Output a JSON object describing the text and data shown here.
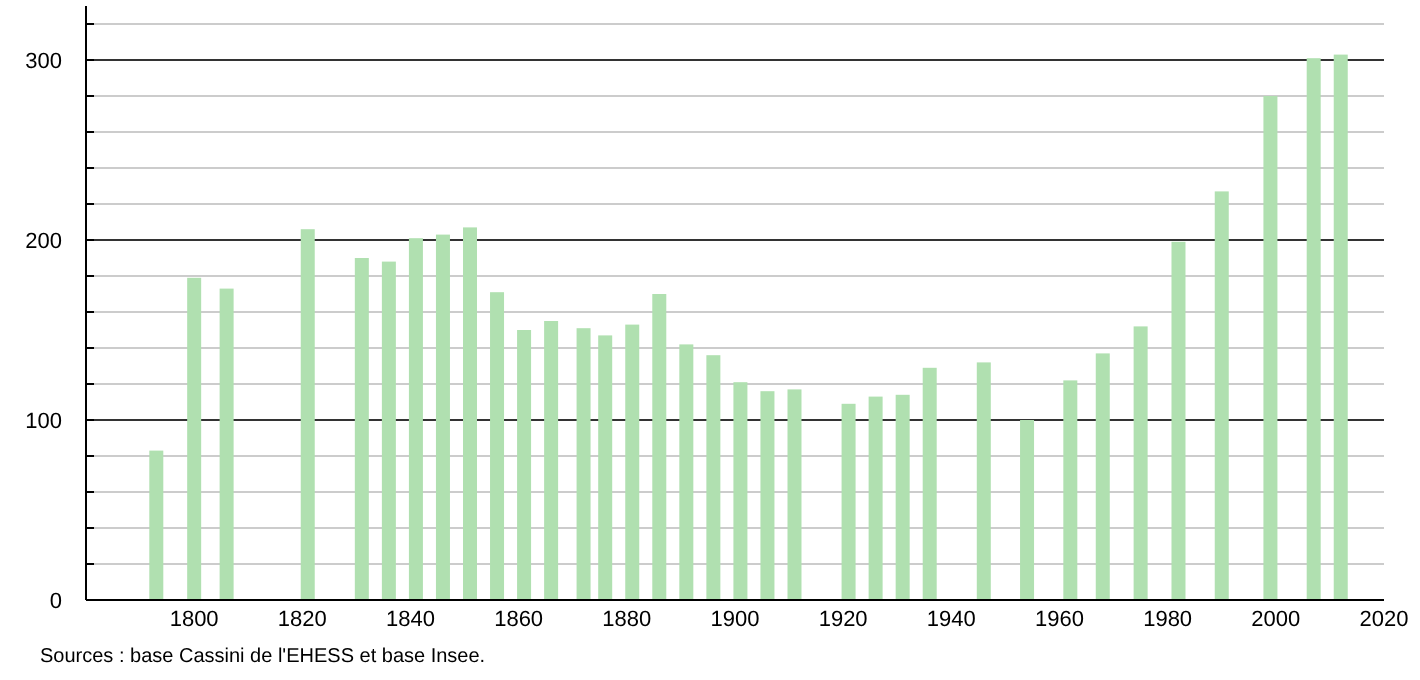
{
  "chart_data": {
    "type": "bar",
    "color": "#b0e0b0",
    "x": [
      1793,
      1800,
      1806,
      1821,
      1831,
      1836,
      1841,
      1846,
      1851,
      1856,
      1861,
      1866,
      1872,
      1876,
      1881,
      1886,
      1891,
      1896,
      1901,
      1906,
      1911,
      1921,
      1926,
      1931,
      1936,
      1946,
      1954,
      1962,
      1968,
      1975,
      1982,
      1990,
      1999,
      2007,
      2012
    ],
    "values": [
      83,
      179,
      173,
      206,
      190,
      188,
      201,
      203,
      207,
      171,
      150,
      155,
      151,
      147,
      153,
      170,
      142,
      136,
      121,
      116,
      117,
      109,
      113,
      114,
      129,
      132,
      100,
      122,
      137,
      152,
      199,
      227,
      280,
      301,
      303
    ],
    "xlim": [
      1780,
      2020
    ],
    "xticks": [
      1800,
      1820,
      1840,
      1860,
      1880,
      1900,
      1920,
      1940,
      1960,
      1980,
      2000,
      2020
    ],
    "ylim": [
      0,
      330
    ],
    "yticks": [
      0,
      {
        "value": 20,
        "label": null
      },
      {
        "value": 40,
        "label": null
      },
      {
        "value": 60,
        "label": null
      },
      {
        "value": 80,
        "label": null
      },
      100,
      {
        "value": 120,
        "label": null
      },
      {
        "value": 140,
        "label": null
      },
      {
        "value": 160,
        "label": null
      },
      {
        "value": 180,
        "label": null
      },
      200,
      {
        "value": 220,
        "label": null
      },
      {
        "value": 240,
        "label": null
      },
      {
        "value": 260,
        "label": null
      },
      {
        "value": 280,
        "label": null
      },
      300,
      {
        "value": 320,
        "label": null
      }
    ],
    "grid": true,
    "annotations": [
      "Sources : base Cassini de l'EHESS et base Insee."
    ]
  }
}
